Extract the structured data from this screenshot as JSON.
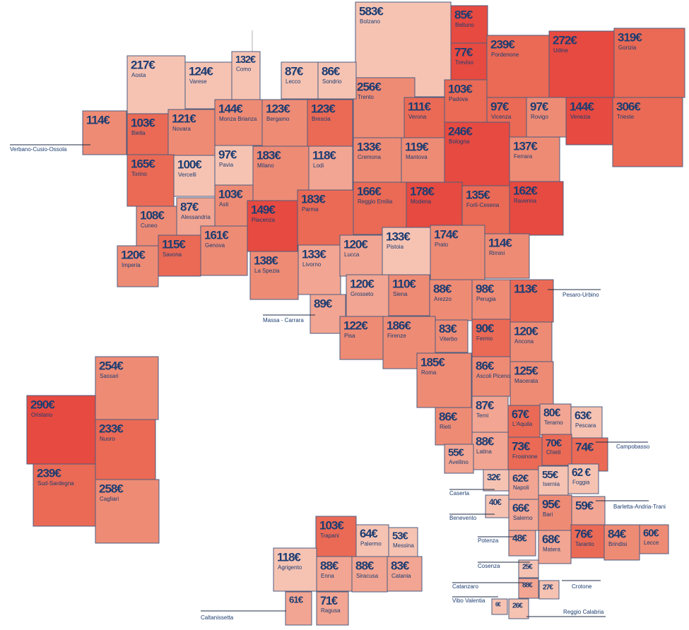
{
  "tiles": [
    {
      "value": "583€",
      "name": "Bolzano",
      "color": "#f6c3b3"
    },
    {
      "value": "85€",
      "name": "Belluno",
      "color": "#e64a40"
    },
    {
      "value": "77€",
      "name": "Treviso",
      "color": "#e64a40"
    },
    {
      "value": "103€",
      "name": "Padova",
      "color": "#ea6a55"
    },
    {
      "value": "239€",
      "name": "Pordenone",
      "color": "#ea6a55"
    },
    {
      "value": "272€",
      "name": "Udine",
      "color": "#e64a40"
    },
    {
      "value": "319€",
      "name": "Gorizia",
      "color": "#ea6a55"
    },
    {
      "value": "256€",
      "name": "Trento",
      "color": "#ee8b75"
    },
    {
      "value": "111€",
      "name": "Verona",
      "color": "#ea6a55"
    },
    {
      "value": "97€",
      "name": "Vicenza",
      "color": "#ea6a55"
    },
    {
      "value": "97€",
      "name": "Rovigo",
      "color": "#ee8b75"
    },
    {
      "value": "144€",
      "name": "Venezia",
      "color": "#e64a40"
    },
    {
      "value": "306€",
      "name": "Trieste",
      "color": "#ea6a55"
    },
    {
      "value": "246€",
      "name": "Bologna",
      "color": "#e64a40"
    },
    {
      "value": "137€",
      "name": "Ferrara",
      "color": "#ee8b75"
    },
    {
      "value": "133€",
      "name": "Cremona",
      "color": "#ee8b75"
    },
    {
      "value": "119€",
      "name": "Mantova",
      "color": "#ee8b75"
    },
    {
      "value": "166€",
      "name": "Reggio Emilia",
      "color": "#ea6a55"
    },
    {
      "value": "178€",
      "name": "Modena",
      "color": "#e64a40"
    },
    {
      "value": "135€",
      "name": "Forlì-Cesena",
      "color": "#ea6a55"
    },
    {
      "value": "162€",
      "name": "Ravenna",
      "color": "#e64a40"
    },
    {
      "value": "217€",
      "name": "Aosta",
      "color": "#f6c3b3"
    },
    {
      "value": "124€",
      "name": "Varese",
      "color": "#f6c3b3"
    },
    {
      "value": "132€",
      "name": "Como",
      "color": "#f6c3b3"
    },
    {
      "value": "87€",
      "name": "Lecco",
      "color": "#f6c3b3"
    },
    {
      "value": "86€",
      "name": "Sondrio",
      "color": "#f6c3b3"
    },
    {
      "value": "114€",
      "name": "Verbano-Cusio-Ossola",
      "color": "#ee8b75"
    },
    {
      "value": "103€",
      "name": "Biella",
      "color": "#ea6a55"
    },
    {
      "value": "121€",
      "name": "Novara",
      "color": "#ee8b75"
    },
    {
      "value": "144€",
      "name": "Monza Brianza",
      "color": "#ee8b75"
    },
    {
      "value": "123€",
      "name": "Bergamo",
      "color": "#ee8b75"
    },
    {
      "value": "123€",
      "name": "Brescia",
      "color": "#ea6a55"
    },
    {
      "value": "165€",
      "name": "Torino",
      "color": "#ea6a55"
    },
    {
      "value": "100€",
      "name": "Vercelli",
      "color": "#f6c3b3"
    },
    {
      "value": "97€",
      "name": "Pavia",
      "color": "#f6c3b3"
    },
    {
      "value": "183€",
      "name": "Milano",
      "color": "#ee8b75"
    },
    {
      "value": "118€",
      "name": "Lodi",
      "color": "#f2a592"
    },
    {
      "value": "108€",
      "name": "Cuneo",
      "color": "#ee8b75"
    },
    {
      "value": "87€",
      "name": "Alessandria",
      "color": "#f2a592"
    },
    {
      "value": "103€",
      "name": "Asti",
      "color": "#ee8b75"
    },
    {
      "value": "149€",
      "name": "Piacenza",
      "color": "#e64a40"
    },
    {
      "value": "183€",
      "name": "Parma",
      "color": "#ea6a55"
    },
    {
      "value": "120€",
      "name": "Imperia",
      "color": "#ee8b75"
    },
    {
      "value": "115€",
      "name": "Savona",
      "color": "#ea6a55"
    },
    {
      "value": "161€",
      "name": "Genova",
      "color": "#ee8b75"
    },
    {
      "value": "138€",
      "name": "La Spezia",
      "color": "#ee8b75"
    },
    {
      "value": "133€",
      "name": "Livorno",
      "color": "#f2a592"
    },
    {
      "value": "89€",
      "name": "Massa - Carrara",
      "color": "#f2a592"
    },
    {
      "value": "120€",
      "name": "Lucca",
      "color": "#f2a592"
    },
    {
      "value": "133€",
      "name": "Pistoia",
      "color": "#f6c3b3"
    },
    {
      "value": "174€",
      "name": "Prato",
      "color": "#ee8b75"
    },
    {
      "value": "114€",
      "name": "Rimini",
      "color": "#ee8b75"
    },
    {
      "value": "120€",
      "name": "Grosseto",
      "color": "#f2a592"
    },
    {
      "value": "110€",
      "name": "Siena",
      "color": "#ee8b75"
    },
    {
      "value": "88€",
      "name": "Arezzo",
      "color": "#ee8b75"
    },
    {
      "value": "98€",
      "name": "Perugia",
      "color": "#ee8b75"
    },
    {
      "value": "113€",
      "name": "Pesaro-Urbino",
      "color": "#ea6a55"
    },
    {
      "value": "122€",
      "name": "Pisa",
      "color": "#ee8b75"
    },
    {
      "value": "186€",
      "name": "Firenze",
      "color": "#ee8b75"
    },
    {
      "value": "83€",
      "name": "Viterbo",
      "color": "#ee8b75"
    },
    {
      "value": "90€",
      "name": "Fermo",
      "color": "#ea6a55"
    },
    {
      "value": "120€",
      "name": "Ancona",
      "color": "#ee8b75"
    },
    {
      "value": "185€",
      "name": "Roma",
      "color": "#ee8b75"
    },
    {
      "value": "86€",
      "name": "Ascoli Piceno",
      "color": "#ee8b75"
    },
    {
      "value": "125€",
      "name": "Macerata",
      "color": "#ee8b75"
    },
    {
      "value": "86€",
      "name": "Rieti",
      "color": "#ee8b75"
    },
    {
      "value": "87€",
      "name": "Terni",
      "color": "#f2a592"
    },
    {
      "value": "67€",
      "name": "L'Aquila",
      "color": "#ea6a55"
    },
    {
      "value": "80€",
      "name": "Teramo",
      "color": "#f2a592"
    },
    {
      "value": "63€",
      "name": "Pescara",
      "color": "#f6c3b3"
    },
    {
      "value": "88€",
      "name": "Latina",
      "color": "#f2a592"
    },
    {
      "value": "73€",
      "name": "Frosinone",
      "color": "#ea6a55"
    },
    {
      "value": "70€",
      "name": "Chieti",
      "color": "#ea6a55"
    },
    {
      "value": "74€",
      "name": "Campobasso",
      "color": "#ea6a55"
    },
    {
      "value": "55€",
      "name": "Avellino",
      "color": "#f2a592"
    },
    {
      "value": "32€",
      "name": "Caserta",
      "color": "#f6c3b3"
    },
    {
      "value": "62€",
      "name": "Napoli",
      "color": "#f2a592"
    },
    {
      "value": "55€",
      "name": "Isernia",
      "color": "#f6c3b3"
    },
    {
      "value": "62 €",
      "name": "Foggia",
      "color": "#f6c3b3"
    },
    {
      "value": "40€",
      "name": "Benevento",
      "color": "#f6c3b3"
    },
    {
      "value": "66€",
      "name": "Salerno",
      "color": "#f2a592"
    },
    {
      "value": "95€",
      "name": "Bari",
      "color": "#ee8b75"
    },
    {
      "value": "59€",
      "name": "Barletta-Andria-Trani",
      "color": "#f2a592"
    },
    {
      "value": "48€",
      "name": "Potenza",
      "color": "#f2a592"
    },
    {
      "value": "68€",
      "name": "Matera",
      "color": "#f2a592"
    },
    {
      "value": "76€",
      "name": "Taranto",
      "color": "#ea6a55"
    },
    {
      "value": "84€",
      "name": "Brindisi",
      "color": "#ee8b75"
    },
    {
      "value": "60€",
      "name": "Lecce",
      "color": "#ee8b75"
    },
    {
      "value": "25€",
      "name": "Cosenza",
      "color": "#f6c3b3"
    },
    {
      "value": "88€",
      "name": "Catanzaro",
      "color": "#f2a592"
    },
    {
      "value": "27€",
      "name": "Crotone",
      "color": "#f6c3b3"
    },
    {
      "value": "6€",
      "name": "Vibo Valentia",
      "color": "#f6c3b3"
    },
    {
      "value": "26€",
      "name": "Reggio Calabria",
      "color": "#f6c3b3"
    },
    {
      "value": "254€",
      "name": "Sassari",
      "color": "#ee8b75"
    },
    {
      "value": "290€",
      "name": "Oristano",
      "color": "#e64a40"
    },
    {
      "value": "233€",
      "name": "Nuoro",
      "color": "#ea6a55"
    },
    {
      "value": "239€",
      "name": "Sud-Sardegna",
      "color": "#ea6a55"
    },
    {
      "value": "258€",
      "name": "Cagliari",
      "color": "#ee8b75"
    },
    {
      "value": "103€",
      "name": "Trapani",
      "color": "#ea6a55"
    },
    {
      "value": "64€",
      "name": "Palermo",
      "color": "#f6c3b3"
    },
    {
      "value": "53€",
      "name": "Messina",
      "color": "#f6c3b3"
    },
    {
      "value": "118€",
      "name": "Agrigento",
      "color": "#f6c3b3"
    },
    {
      "value": "88€",
      "name": "Enna",
      "color": "#f2a592"
    },
    {
      "value": "88€",
      "name": "Siracusa",
      "color": "#f2a592"
    },
    {
      "value": "83€",
      "name": "Catania",
      "color": "#f2a592"
    },
    {
      "value": "61€",
      "name": "Caltanissetta",
      "color": "#f2a592"
    },
    {
      "value": "71€",
      "name": "Ragusa",
      "color": "#f2a592"
    }
  ]
}
